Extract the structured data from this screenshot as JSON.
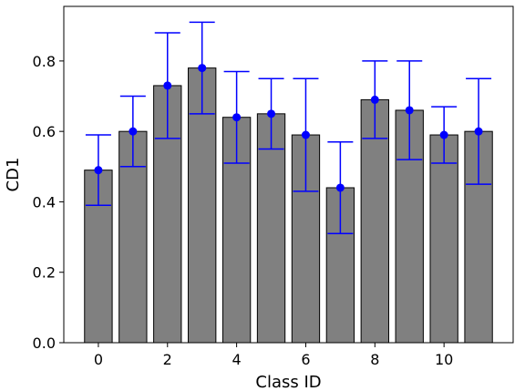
{
  "chart_data": {
    "type": "bar",
    "xlabel": "Class ID",
    "ylabel": "CD1",
    "categories": [
      "0",
      "1",
      "2",
      "3",
      "4",
      "5",
      "6",
      "7",
      "8",
      "9",
      "10",
      "11"
    ],
    "values": [
      0.49,
      0.6,
      0.73,
      0.78,
      0.64,
      0.65,
      0.59,
      0.44,
      0.69,
      0.66,
      0.59,
      0.6
    ],
    "error_low": [
      0.39,
      0.5,
      0.58,
      0.65,
      0.51,
      0.55,
      0.43,
      0.31,
      0.58,
      0.52,
      0.51,
      0.45
    ],
    "error_high": [
      0.59,
      0.7,
      0.88,
      0.91,
      0.77,
      0.75,
      0.75,
      0.57,
      0.8,
      0.8,
      0.67,
      0.75
    ],
    "ylim": [
      0,
      0.955
    ],
    "xlim": [
      -1,
      12
    ],
    "yticks": [
      0.0,
      0.2,
      0.4,
      0.6,
      0.8
    ],
    "ytick_labels": [
      "0.0",
      "0.2",
      "0.4",
      "0.6",
      "0.8"
    ],
    "xticks": [
      0,
      2,
      4,
      6,
      8,
      10
    ],
    "xtick_labels": [
      "0",
      "2",
      "4",
      "6",
      "8",
      "10"
    ],
    "grid": false,
    "bar_color": "#808080",
    "bar_edge_color": "#000000",
    "marker_color": "#0000ff"
  }
}
